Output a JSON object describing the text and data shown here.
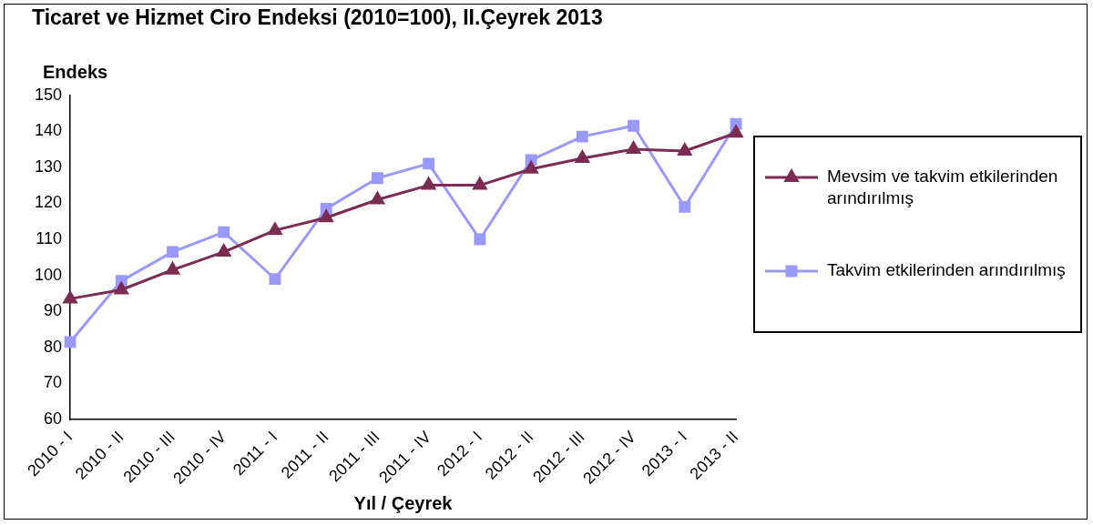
{
  "chart_data": {
    "type": "line",
    "title": "Ticaret ve Hizmet Ciro Endeksi (2010=100), II.Çeyrek 2013",
    "ylabel": "Endeks",
    "xlabel": "Yıl / Çeyrek",
    "categories": [
      "2010 - I",
      "2010 - II",
      "2010 - III",
      "2010 - IV",
      "2011 - I",
      "2011 - II",
      "2011 - III",
      "2011 - IV",
      "2012 - I",
      "2012 - II",
      "2012 - III",
      "2012 - IV",
      "2013 - I",
      "2013 - II"
    ],
    "series": [
      {
        "name": "Mevsim ve takvim etkilerinden arındırılmış",
        "color": "#7b2c52",
        "marker": "triangle",
        "values": [
          93.5,
          96,
          101.5,
          106.5,
          112.5,
          116,
          121,
          125,
          125,
          129.5,
          132.5,
          135,
          134.5,
          139.5
        ]
      },
      {
        "name": "Takvim etkilerinden arındırılmış",
        "color": "#9999ff",
        "marker": "square",
        "values": [
          81.5,
          98.5,
          106.5,
          112,
          99,
          118.5,
          127,
          131,
          110,
          132,
          138.5,
          141.5,
          119,
          142
        ]
      }
    ],
    "ylim": [
      60,
      150
    ],
    "yticks": [
      60,
      70,
      80,
      90,
      100,
      110,
      120,
      130,
      140,
      150
    ],
    "grid": false,
    "legend": "right",
    "line_style": "solid"
  }
}
